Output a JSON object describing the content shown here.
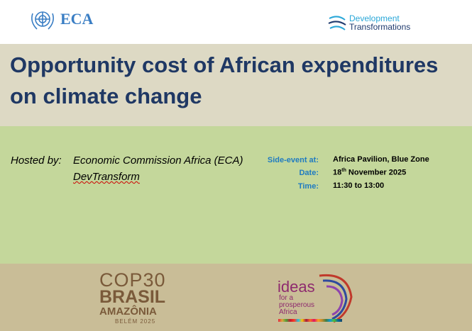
{
  "header": {
    "left_logo": "ECA",
    "right_logo": [
      "Development",
      "Transformations"
    ]
  },
  "title": "Opportunity cost of African expenditures on climate change",
  "hosted": {
    "label": "Hosted by:",
    "hosts": [
      "Economic Commission Africa (ECA)",
      "DevTransform"
    ]
  },
  "details": [
    {
      "label": "Side-event at:",
      "value": "Africa Pavilion, Blue Zone"
    },
    {
      "label": "Date:",
      "value": [
        "18",
        "th",
        " November 2025"
      ]
    },
    {
      "label": "Time:",
      "value": "11:30 to 13:00"
    }
  ],
  "footer": {
    "cop": [
      "COP30",
      "BRASIL",
      "AMAZÔNIA",
      "BELÉM 2025"
    ],
    "ideas": [
      "ideas",
      "for a",
      "prosperous",
      "Africa"
    ]
  }
}
